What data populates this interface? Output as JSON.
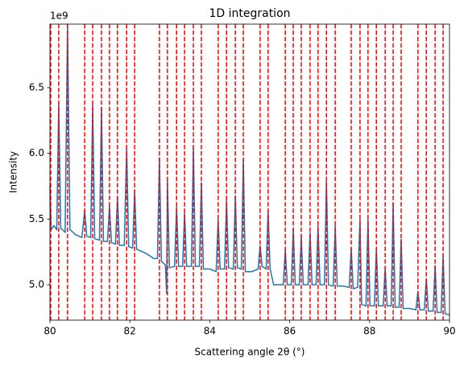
{
  "chart_data": {
    "type": "line",
    "title": "1D integration",
    "x_label": "Scattering angle 2θ (°)",
    "y_label": "Intensity",
    "y_offset_text": "1e9",
    "xlim": [
      80,
      90
    ],
    "ylim": [
      4.731,
      6.983
    ],
    "xticks": [
      80,
      82,
      84,
      86,
      88,
      90
    ],
    "yticks": [
      {
        "value": 5,
        "label": "5.0"
      },
      5.5,
      {
        "value": 6,
        "label": "6.0"
      },
      6.5
    ],
    "vlines": [
      80.02,
      80.22,
      80.44,
      80.87,
      81.07,
      81.29,
      81.49,
      81.69,
      81.92,
      82.12,
      82.74,
      82.94,
      83.17,
      83.37,
      83.59,
      83.79,
      84.21,
      84.42,
      84.64,
      84.84,
      85.26,
      85.46,
      85.89,
      86.09,
      86.29,
      86.51,
      86.71,
      86.92,
      87.14,
      87.54,
      87.76,
      87.96,
      88.17,
      88.39,
      88.59,
      88.79,
      89.21,
      89.42,
      89.64,
      89.84
    ],
    "vline_color": "#ff0000",
    "series": [
      {
        "color": "#1f77b4",
        "x": [
          80.0,
          80.03,
          80.1,
          80.17,
          80.22,
          80.27,
          80.38,
          80.44,
          80.5,
          80.65,
          80.8,
          80.87,
          80.92,
          81.02,
          81.07,
          81.12,
          81.24,
          81.29,
          81.34,
          81.44,
          81.49,
          81.54,
          81.64,
          81.69,
          81.74,
          81.86,
          81.92,
          81.97,
          82.07,
          82.12,
          82.17,
          82.4,
          82.6,
          82.69,
          82.74,
          82.79,
          82.89,
          82.92,
          82.94,
          82.99,
          83.12,
          83.17,
          83.22,
          83.32,
          83.37,
          83.42,
          83.54,
          83.59,
          83.64,
          83.74,
          83.79,
          83.84,
          84.0,
          84.16,
          84.21,
          84.26,
          84.37,
          84.42,
          84.47,
          84.59,
          84.64,
          84.69,
          84.79,
          84.84,
          84.89,
          85.05,
          85.21,
          85.26,
          85.31,
          85.41,
          85.46,
          85.51,
          85.6,
          85.75,
          85.84,
          85.89,
          85.94,
          86.04,
          86.09,
          86.14,
          86.24,
          86.29,
          86.34,
          86.46,
          86.51,
          86.56,
          86.66,
          86.71,
          86.76,
          86.87,
          86.92,
          86.97,
          87.09,
          87.14,
          87.19,
          87.35,
          87.49,
          87.54,
          87.59,
          87.7,
          87.76,
          87.8,
          87.91,
          87.96,
          88.01,
          88.12,
          88.17,
          88.22,
          88.34,
          88.39,
          88.44,
          88.54,
          88.59,
          88.64,
          88.74,
          88.79,
          88.84,
          89.0,
          89.16,
          89.21,
          89.26,
          89.37,
          89.42,
          89.47,
          89.59,
          89.64,
          89.69,
          89.79,
          89.84,
          89.89,
          90.0
        ],
        "values": [
          5.75,
          5.42,
          5.45,
          5.42,
          6.38,
          5.43,
          5.4,
          6.98,
          5.42,
          5.38,
          5.36,
          5.57,
          5.37,
          5.36,
          6.38,
          5.35,
          5.34,
          6.35,
          5.33,
          5.33,
          5.6,
          5.32,
          5.31,
          5.67,
          5.3,
          5.3,
          6.05,
          5.29,
          5.28,
          5.72,
          5.27,
          5.24,
          5.2,
          5.2,
          5.97,
          5.18,
          5.15,
          4.93,
          5.8,
          5.13,
          5.14,
          5.6,
          5.14,
          5.14,
          5.55,
          5.14,
          5.14,
          6.05,
          5.14,
          5.14,
          5.78,
          5.12,
          5.12,
          5.1,
          5.5,
          5.12,
          5.12,
          5.65,
          5.13,
          5.12,
          5.68,
          5.13,
          5.12,
          5.95,
          5.1,
          5.1,
          5.12,
          5.3,
          5.14,
          5.12,
          5.57,
          5.12,
          5.0,
          5.0,
          5.0,
          5.27,
          5.0,
          5.0,
          5.43,
          5.0,
          5.0,
          5.37,
          5.0,
          5.0,
          5.4,
          5.0,
          5.0,
          5.45,
          5.0,
          5.0,
          5.8,
          5.0,
          4.99,
          5.45,
          4.99,
          4.99,
          4.98,
          5.28,
          4.97,
          4.98,
          5.5,
          4.85,
          4.84,
          5.5,
          4.84,
          4.84,
          5.28,
          4.84,
          4.84,
          5.13,
          4.84,
          4.84,
          5.62,
          4.83,
          4.83,
          5.35,
          4.82,
          4.82,
          4.81,
          4.95,
          4.81,
          4.81,
          5.05,
          4.8,
          4.8,
          5.15,
          4.79,
          4.79,
          5.22,
          4.78,
          4.77
        ]
      }
    ]
  }
}
